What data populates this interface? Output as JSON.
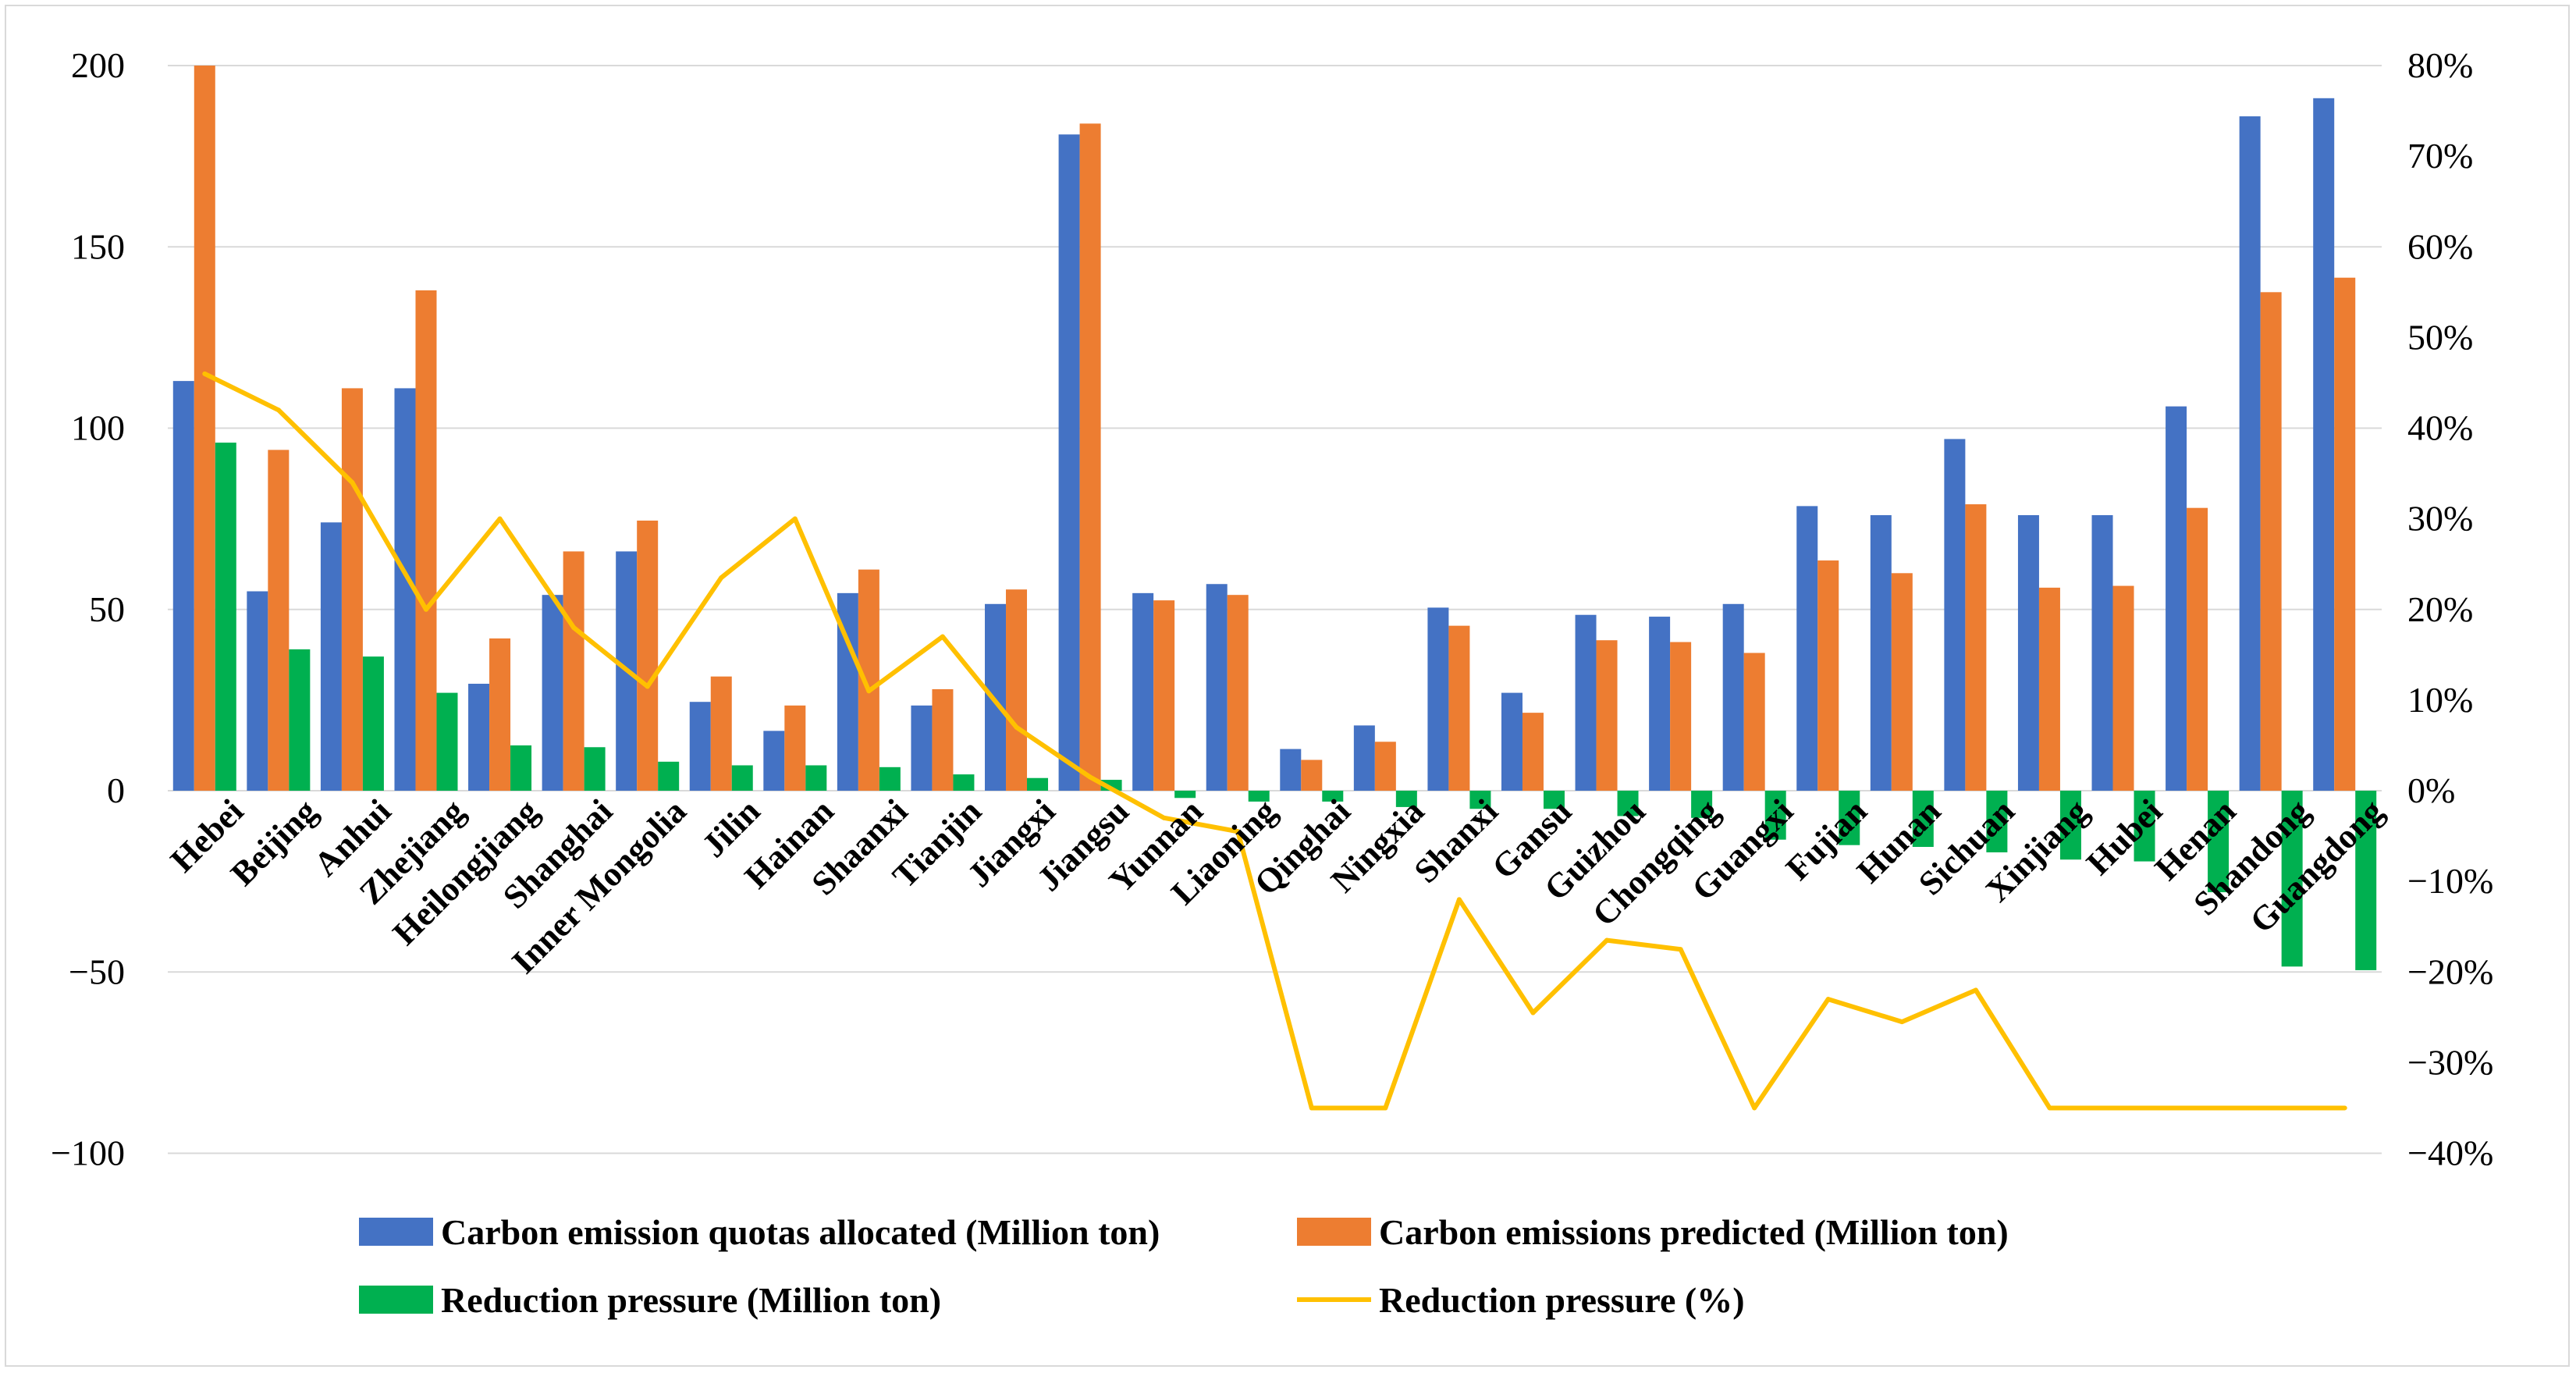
{
  "chart_data": {
    "type": "bar",
    "title": "",
    "categories": [
      "Hebei",
      "Beijing",
      "Anhui",
      "Zhejiang",
      "Heilongjiang",
      "Shanghai",
      "Inner Mongolia",
      "Jilin",
      "Hainan",
      "Shaanxi",
      "Tianjin",
      "Jiangxi",
      "Jiangsu",
      "Yunnan",
      "Liaoning",
      "Qinghai",
      "Ningxia",
      "Shanxi",
      "Gansu",
      "Guizhou",
      "Chongqing",
      "Guangxi",
      "Fujian",
      "Hunan",
      "Sichuan",
      "Xinjiang",
      "Hubei",
      "Henan",
      "Shandong",
      "Guangdong"
    ],
    "series": [
      {
        "name": "Carbon emission quotas allocated (Million ton)",
        "axis": "left",
        "kind": "bar",
        "color": "#4472C4",
        "values": [
          113,
          55,
          74,
          111,
          29.5,
          54,
          66,
          24.5,
          16.5,
          54.5,
          23.5,
          51.5,
          181,
          54.5,
          57,
          11.5,
          18,
          50.5,
          27,
          48.5,
          48,
          51.5,
          78.5,
          76,
          97,
          76,
          76,
          106,
          186,
          191
        ]
      },
      {
        "name": "Carbon emissions predicted (Million ton)",
        "axis": "left",
        "kind": "bar",
        "color": "#ED7D31",
        "values": [
          200,
          94,
          111,
          138,
          42,
          66,
          74.5,
          31.5,
          23.5,
          61,
          28,
          55.5,
          184,
          52.5,
          54,
          8.5,
          13.5,
          45.5,
          21.5,
          41.5,
          41,
          38,
          63.5,
          60,
          79,
          56,
          56.5,
          78,
          137.5,
          141.5
        ]
      },
      {
        "name": "Reduction pressure (Million ton)",
        "axis": "left",
        "kind": "bar",
        "color": "#00B050",
        "values": [
          96,
          39,
          37,
          27,
          12.5,
          12,
          8,
          7,
          7,
          6.5,
          4.5,
          3.5,
          3,
          -2,
          -3,
          -3,
          -4.5,
          -5,
          -5,
          -7,
          -7.5,
          -13.5,
          -15,
          -15.5,
          -17,
          -19,
          -19.5,
          -28,
          -48.5,
          -49.5
        ]
      },
      {
        "name": "Reduction pressure (%)",
        "axis": "right",
        "kind": "line",
        "color": "#FFC000",
        "values": [
          46,
          42,
          34,
          20,
          30,
          18,
          11.5,
          23.5,
          30,
          11,
          17,
          7,
          1.5,
          -3,
          -4.5,
          -35,
          -35,
          -12,
          -24.5,
          -16.5,
          -17.5,
          -35,
          -23,
          -25.5,
          -22,
          -35,
          -35,
          -35,
          -35,
          -35
        ]
      }
    ],
    "left_axis": {
      "min": -100,
      "max": 200,
      "ticks": [
        200,
        150,
        100,
        50,
        0,
        -50,
        -100
      ],
      "tick_labels": [
        "200",
        "150",
        "100",
        "50",
        "0",
        "−50",
        "−100"
      ]
    },
    "right_axis": {
      "min": -40,
      "max": 80,
      "ticks": [
        80,
        70,
        60,
        50,
        40,
        30,
        20,
        10,
        0,
        -10,
        -20,
        -30,
        -40
      ],
      "tick_labels": [
        "80%",
        "70%",
        "60%",
        "50%",
        "40%",
        "30%",
        "20%",
        "10%",
        "0%",
        "−10%",
        "−20%",
        "−30%",
        "−40%"
      ]
    },
    "grid": true,
    "legend_position": "bottom",
    "xlabel": "",
    "ylabel": ""
  }
}
